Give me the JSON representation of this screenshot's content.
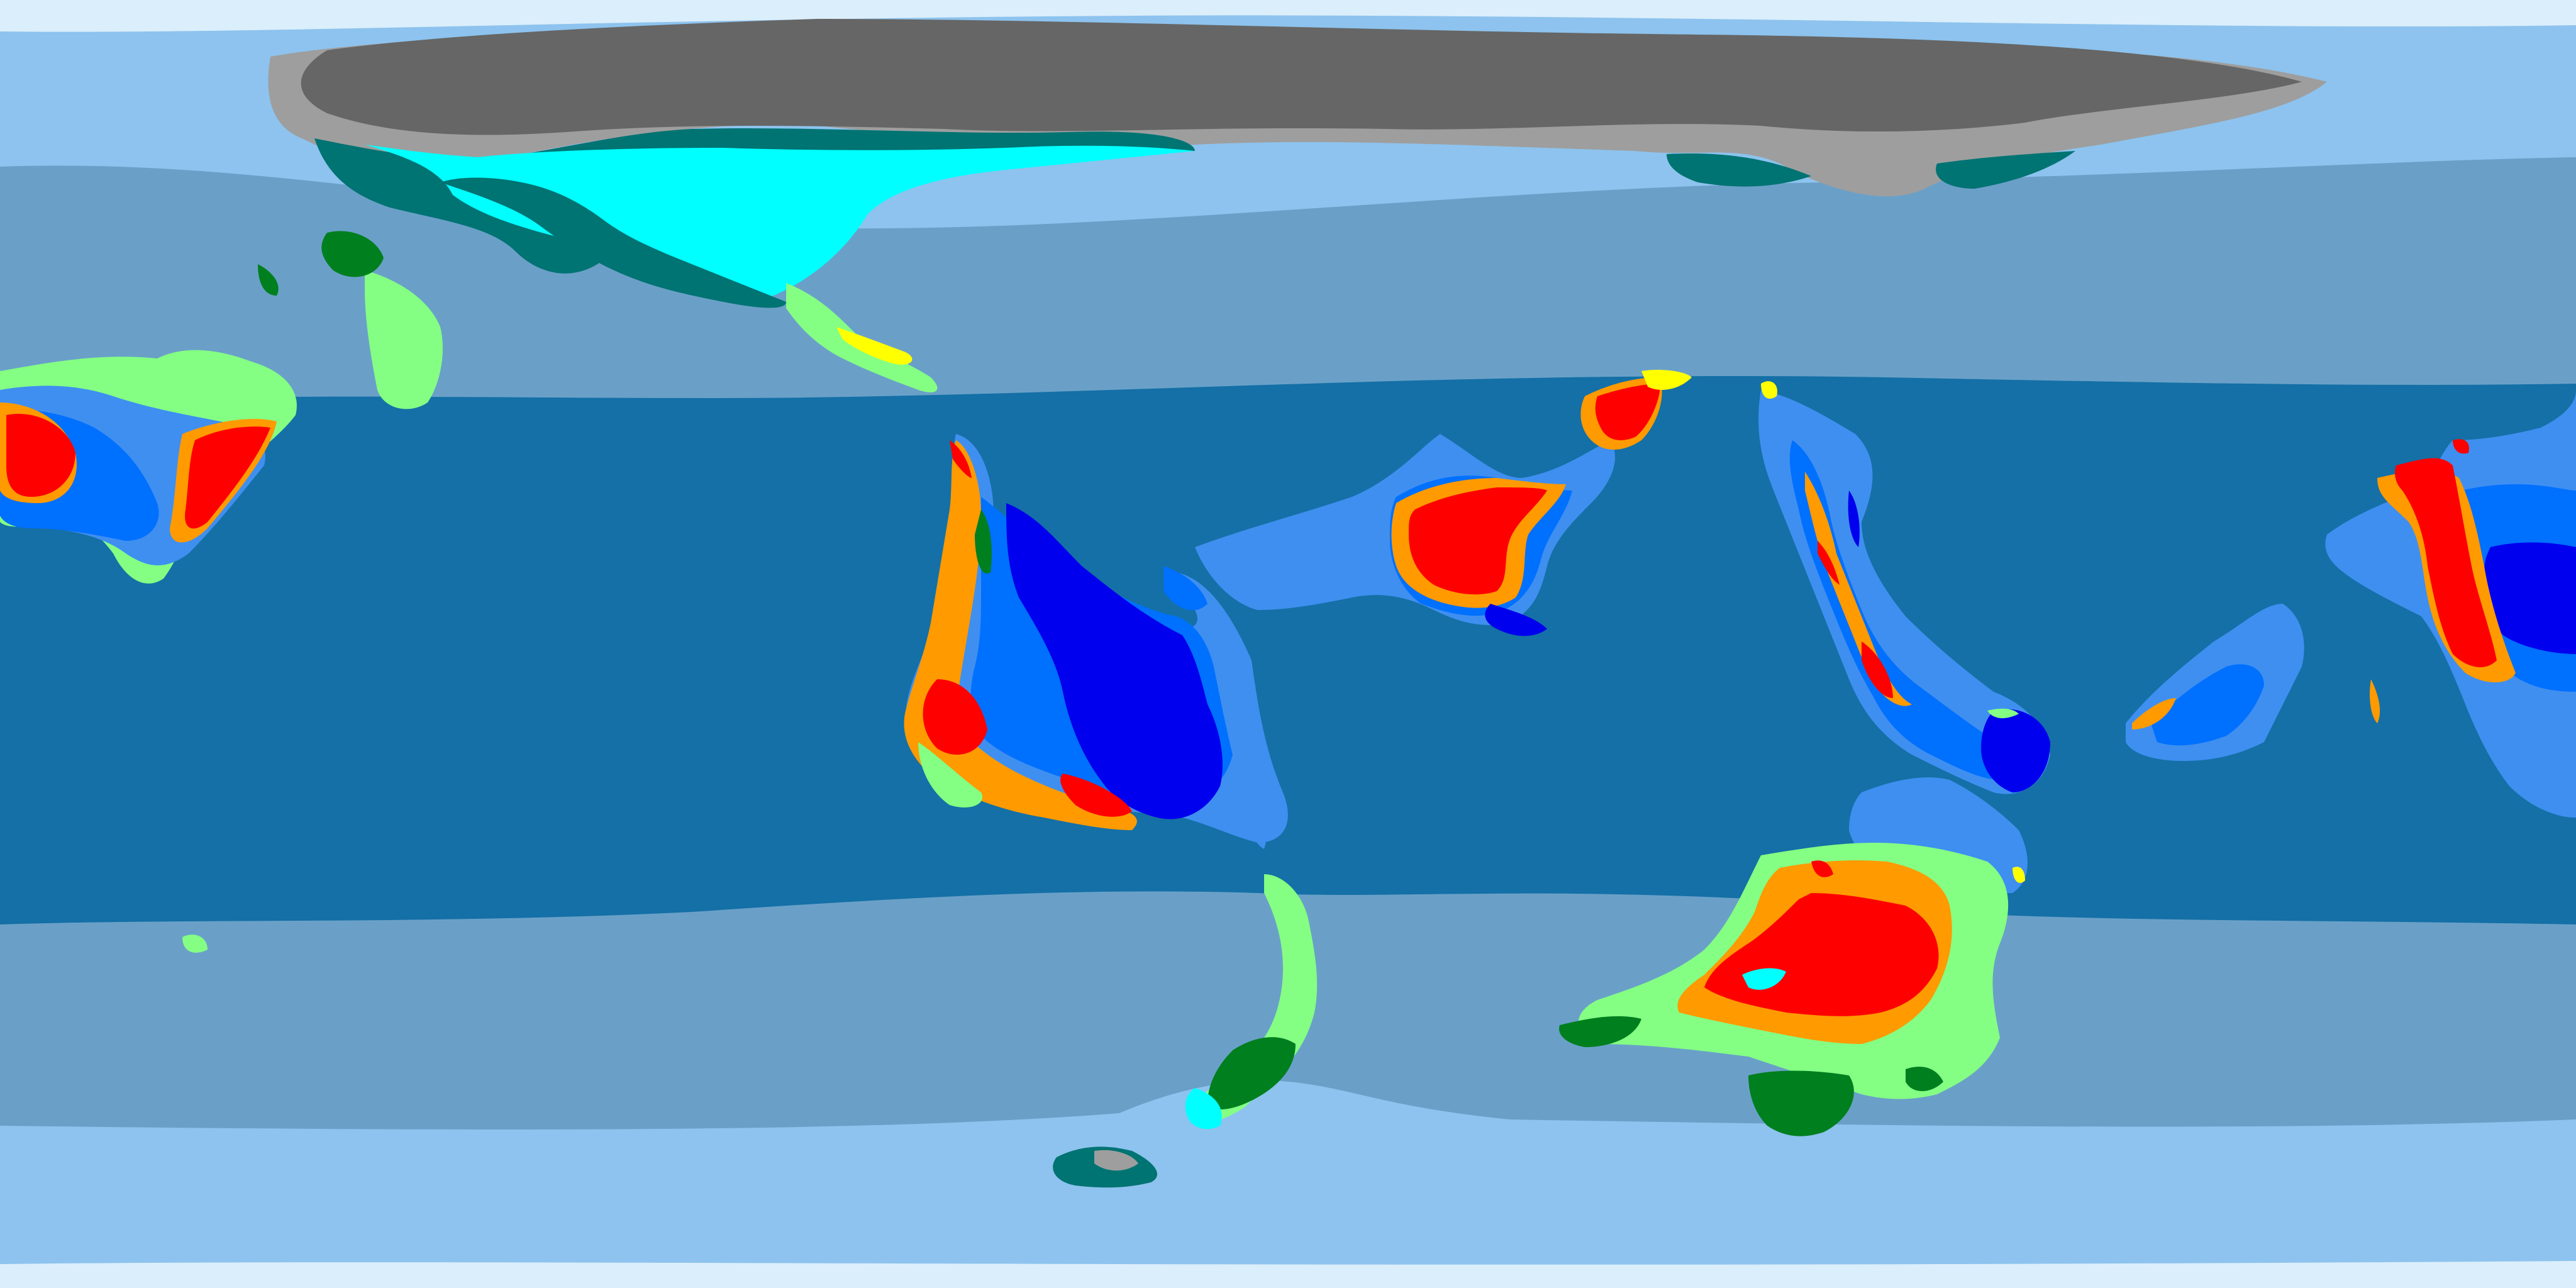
{
  "map": {
    "projection": "equirectangular",
    "type": "climate-zone-map",
    "palette": {
      "polar_ice": "#dbeefb",
      "ocean_polar": "#8dc3ee",
      "ocean_temperate": "#6aa0c8",
      "ocean_tropical": "#1470a6",
      "ice_cap": "#666666",
      "tundra": "#9e9e9e",
      "subarctic": "#007373",
      "continental_cold": "#00ffff",
      "temperate_oceanic": "#007f1f",
      "humid_subtropical": "#84ff84",
      "mediterranean": "#ffff00",
      "tropical_savanna": "#3f8ff0",
      "tropical_monsoon": "#0070ff",
      "tropical_rainforest": "#0000ef",
      "semi_arid": "#ff9a00",
      "desert": "#ff0000"
    },
    "regions": [
      "northern-ice-cap",
      "northern-tundra-fringe",
      "northwest-landmass",
      "central-landmass",
      "east-landmass",
      "far-east-landmass",
      "southern-continent",
      "southern-chain",
      "southern-island"
    ]
  }
}
